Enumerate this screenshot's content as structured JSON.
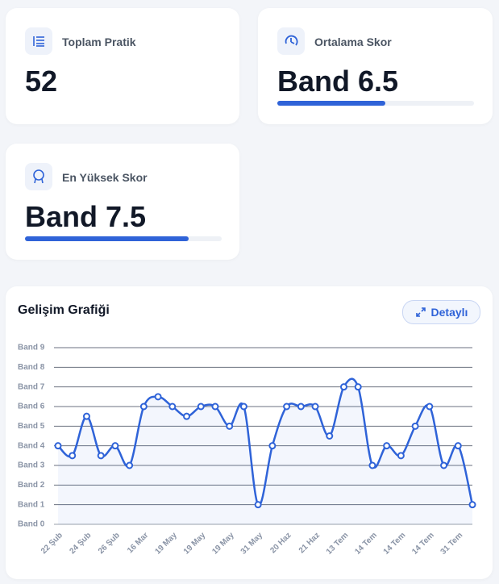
{
  "stats": [
    {
      "label": "Toplam Pratik",
      "value": 52
    },
    {
      "label": "Ortalama Skor",
      "value": "Band 6.5",
      "progress": 55
    },
    {
      "label": "En Yüksek Skor",
      "value": "Band 7.5",
      "progress": 83
    }
  ],
  "chart_data": {
    "type": "line",
    "title": "Gelişim Grafiği",
    "button": "Detaylı",
    "categories": [
      "22 Şub",
      null,
      "24 Şub",
      null,
      "26 Şub",
      null,
      "16 Mar",
      null,
      "19 May",
      null,
      "19 May",
      null,
      "19 May",
      null,
      "31 May",
      null,
      "20 Haz",
      null,
      "21 Haz",
      null,
      "13 Tem",
      null,
      "14 Tem",
      null,
      "14 Tem",
      null,
      "14 Tem",
      null,
      "31 Tem",
      null
    ],
    "values": [
      4,
      3.5,
      5.5,
      3.5,
      4,
      3,
      6,
      6.5,
      6,
      5.5,
      6,
      6,
      5,
      6,
      1,
      4,
      6,
      6,
      6,
      4.5,
      7,
      7,
      3,
      4,
      3.5,
      5,
      6,
      3,
      4,
      1
    ],
    "color": "#2f63d8",
    "ylim": [
      0,
      9
    ],
    "yticks": [
      {
        "value": 0,
        "label": "Band 0"
      },
      {
        "value": 1,
        "label": "Band 1"
      },
      {
        "value": 2,
        "label": "Band 2"
      },
      {
        "value": 3,
        "label": "Band 3"
      },
      {
        "value": 4,
        "label": "Band 4"
      },
      {
        "value": 5,
        "label": "Band 5"
      },
      {
        "value": 6,
        "label": "Band 6"
      },
      {
        "value": 7,
        "label": "Band 7"
      },
      {
        "value": 8,
        "label": "Band 8"
      },
      {
        "value": 9,
        "label": "Band 9"
      }
    ],
    "grid": true
  }
}
